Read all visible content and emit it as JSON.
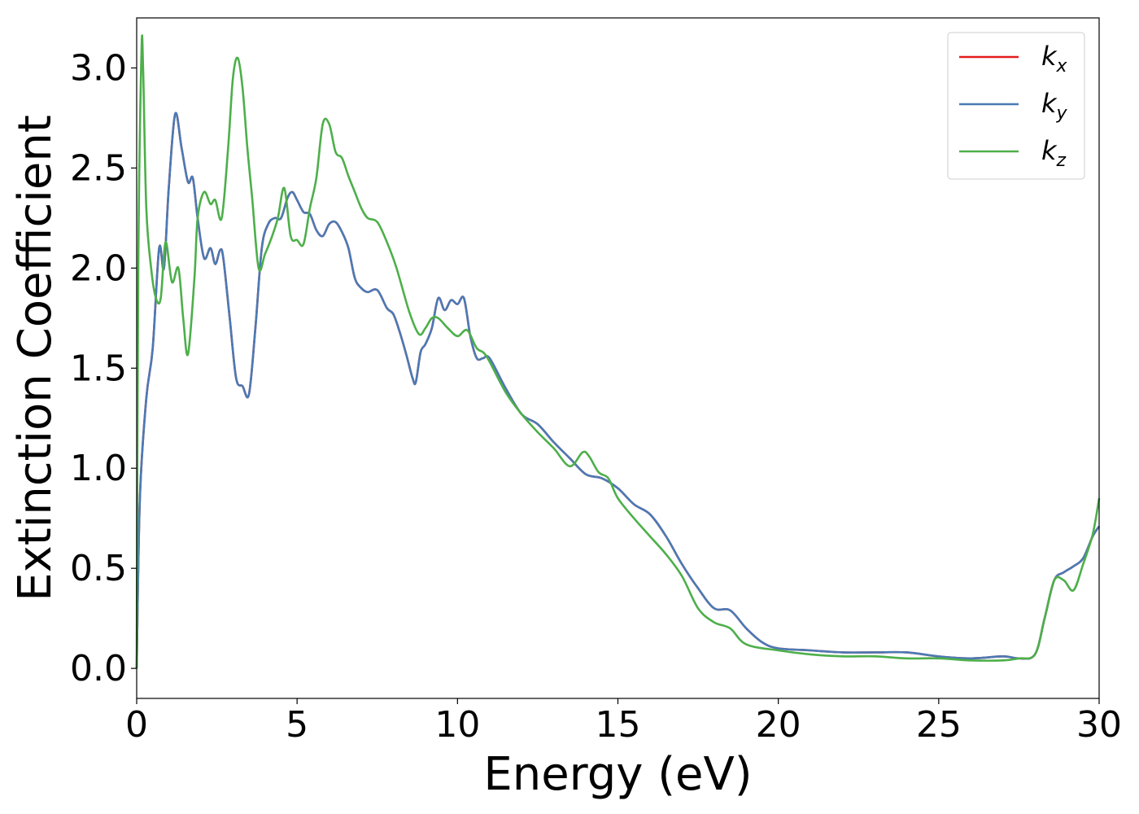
{
  "chart_data": {
    "type": "line",
    "title": "",
    "xlabel": "Energy (eV)",
    "ylabel": "Extinction Coefficient",
    "xlim": [
      0,
      30
    ],
    "ylim": [
      -0.15,
      3.25
    ],
    "xticks": [
      0,
      5,
      10,
      15,
      20,
      25,
      30
    ],
    "xtick_labels": [
      "0",
      "5",
      "10",
      "15",
      "20",
      "25",
      "30"
    ],
    "yticks": [
      0.0,
      0.5,
      1.0,
      1.5,
      2.0,
      2.5,
      3.0
    ],
    "ytick_labels": [
      "0.0",
      "0.5",
      "1.0",
      "1.5",
      "2.0",
      "2.5",
      "3.0"
    ],
    "grid": false,
    "legend_position": "top-right",
    "series": [
      {
        "name": "k_x",
        "label_main": "k",
        "label_sub": "x",
        "color": "#e41a1c",
        "x": [
          0,
          0.1,
          0.3,
          0.5,
          0.7,
          0.85,
          1.0,
          1.2,
          1.4,
          1.6,
          1.75,
          1.9,
          2.1,
          2.3,
          2.45,
          2.6,
          2.7,
          2.9,
          3.1,
          3.3,
          3.5,
          3.7,
          3.9,
          4.1,
          4.3,
          4.5,
          4.7,
          4.85,
          5.0,
          5.2,
          5.4,
          5.6,
          5.8,
          6.0,
          6.2,
          6.4,
          6.6,
          6.8,
          7.0,
          7.2,
          7.5,
          7.8,
          8.0,
          8.2,
          8.4,
          8.6,
          8.7,
          8.85,
          9.0,
          9.2,
          9.4,
          9.6,
          9.8,
          10.0,
          10.2,
          10.4,
          10.6,
          10.8,
          11.0,
          11.5,
          12.0,
          12.5,
          13.0,
          13.5,
          14.0,
          14.5,
          15.0,
          15.5,
          16.0,
          16.5,
          17.0,
          17.5,
          18.0,
          18.5,
          19.0,
          19.5,
          20.0,
          21.0,
          22.0,
          23.0,
          24.0,
          25.0,
          26.0,
          27.0,
          27.5,
          28.0,
          28.3,
          28.6,
          28.9,
          29.2,
          29.5,
          29.8,
          30.0
        ],
        "y": [
          0,
          0.85,
          1.35,
          1.6,
          2.1,
          2.0,
          2.4,
          2.77,
          2.6,
          2.43,
          2.45,
          2.25,
          2.05,
          2.1,
          2.02,
          2.09,
          2.05,
          1.75,
          1.45,
          1.41,
          1.37,
          1.7,
          2.1,
          2.22,
          2.25,
          2.25,
          2.35,
          2.38,
          2.34,
          2.28,
          2.27,
          2.19,
          2.16,
          2.22,
          2.23,
          2.18,
          2.1,
          1.95,
          1.9,
          1.88,
          1.89,
          1.8,
          1.77,
          1.68,
          1.57,
          1.45,
          1.43,
          1.58,
          1.62,
          1.7,
          1.85,
          1.79,
          1.84,
          1.82,
          1.85,
          1.66,
          1.55,
          1.55,
          1.55,
          1.4,
          1.27,
          1.22,
          1.13,
          1.05,
          0.97,
          0.95,
          0.9,
          0.82,
          0.77,
          0.66,
          0.52,
          0.4,
          0.3,
          0.29,
          0.2,
          0.13,
          0.1,
          0.09,
          0.08,
          0.08,
          0.08,
          0.06,
          0.05,
          0.06,
          0.05,
          0.07,
          0.25,
          0.44,
          0.48,
          0.51,
          0.55,
          0.66,
          0.71
        ]
      },
      {
        "name": "k_y",
        "label_main": "k",
        "label_sub": "y",
        "color": "#4a7ab5",
        "x": [
          0,
          0.1,
          0.3,
          0.5,
          0.7,
          0.85,
          1.0,
          1.2,
          1.4,
          1.6,
          1.75,
          1.9,
          2.1,
          2.3,
          2.45,
          2.6,
          2.7,
          2.9,
          3.1,
          3.3,
          3.5,
          3.7,
          3.9,
          4.1,
          4.3,
          4.5,
          4.7,
          4.85,
          5.0,
          5.2,
          5.4,
          5.6,
          5.8,
          6.0,
          6.2,
          6.4,
          6.6,
          6.8,
          7.0,
          7.2,
          7.5,
          7.8,
          8.0,
          8.2,
          8.4,
          8.6,
          8.7,
          8.85,
          9.0,
          9.2,
          9.4,
          9.6,
          9.8,
          10.0,
          10.2,
          10.4,
          10.6,
          10.8,
          11.0,
          11.5,
          12.0,
          12.5,
          13.0,
          13.5,
          14.0,
          14.5,
          15.0,
          15.5,
          16.0,
          16.5,
          17.0,
          17.5,
          18.0,
          18.5,
          19.0,
          19.5,
          20.0,
          21.0,
          22.0,
          23.0,
          24.0,
          25.0,
          26.0,
          27.0,
          27.5,
          28.0,
          28.3,
          28.6,
          28.9,
          29.2,
          29.5,
          29.8,
          30.0
        ],
        "y": [
          0,
          0.85,
          1.35,
          1.6,
          2.1,
          2.0,
          2.4,
          2.77,
          2.6,
          2.43,
          2.45,
          2.25,
          2.05,
          2.1,
          2.02,
          2.09,
          2.05,
          1.75,
          1.45,
          1.41,
          1.37,
          1.7,
          2.1,
          2.22,
          2.25,
          2.25,
          2.35,
          2.38,
          2.34,
          2.28,
          2.27,
          2.19,
          2.16,
          2.22,
          2.23,
          2.18,
          2.1,
          1.95,
          1.9,
          1.88,
          1.89,
          1.8,
          1.77,
          1.68,
          1.57,
          1.45,
          1.43,
          1.58,
          1.62,
          1.7,
          1.85,
          1.79,
          1.84,
          1.82,
          1.85,
          1.66,
          1.55,
          1.55,
          1.55,
          1.4,
          1.27,
          1.22,
          1.13,
          1.05,
          0.97,
          0.95,
          0.9,
          0.82,
          0.77,
          0.66,
          0.52,
          0.4,
          0.3,
          0.29,
          0.2,
          0.13,
          0.1,
          0.09,
          0.08,
          0.08,
          0.08,
          0.06,
          0.05,
          0.06,
          0.05,
          0.07,
          0.25,
          0.44,
          0.48,
          0.51,
          0.55,
          0.66,
          0.71
        ]
      },
      {
        "name": "k_z",
        "label_main": "k",
        "label_sub": "z",
        "color": "#4daf4a",
        "x": [
          0,
          0.05,
          0.15,
          0.2,
          0.3,
          0.45,
          0.6,
          0.75,
          0.9,
          1.1,
          1.3,
          1.45,
          1.6,
          1.8,
          1.9,
          2.1,
          2.3,
          2.45,
          2.65,
          2.85,
          3.0,
          3.15,
          3.3,
          3.45,
          3.6,
          3.8,
          4.0,
          4.2,
          4.4,
          4.6,
          4.8,
          5.0,
          5.2,
          5.4,
          5.6,
          5.8,
          6.0,
          6.2,
          6.4,
          6.6,
          6.8,
          7.0,
          7.2,
          7.5,
          7.8,
          8.1,
          8.5,
          8.8,
          9.0,
          9.2,
          9.4,
          9.7,
          10.0,
          10.3,
          10.6,
          10.9,
          11.5,
          12.0,
          12.5,
          13.0,
          13.5,
          13.9,
          14.1,
          14.4,
          14.7,
          15.0,
          15.5,
          16.0,
          16.5,
          17.0,
          17.5,
          18.0,
          18.5,
          19.0,
          20.0,
          21.0,
          22.0,
          23.0,
          24.0,
          25.0,
          26.0,
          27.0,
          27.5,
          28.0,
          28.3,
          28.6,
          28.9,
          29.2,
          29.5,
          29.8,
          30.0
        ],
        "y": [
          0,
          2.0,
          3.08,
          3.0,
          2.3,
          2.0,
          1.85,
          1.85,
          2.13,
          1.93,
          2.0,
          1.75,
          1.57,
          1.95,
          2.25,
          2.38,
          2.32,
          2.34,
          2.25,
          2.6,
          2.95,
          3.05,
          2.9,
          2.6,
          2.35,
          2.0,
          2.07,
          2.15,
          2.25,
          2.4,
          2.16,
          2.14,
          2.12,
          2.3,
          2.45,
          2.72,
          2.72,
          2.58,
          2.55,
          2.46,
          2.38,
          2.3,
          2.25,
          2.23,
          2.13,
          2.0,
          1.78,
          1.67,
          1.7,
          1.75,
          1.75,
          1.7,
          1.66,
          1.69,
          1.6,
          1.56,
          1.38,
          1.27,
          1.18,
          1.1,
          1.01,
          1.08,
          1.06,
          0.98,
          0.95,
          0.85,
          0.75,
          0.66,
          0.57,
          0.46,
          0.3,
          0.23,
          0.2,
          0.12,
          0.09,
          0.07,
          0.06,
          0.06,
          0.05,
          0.05,
          0.04,
          0.04,
          0.05,
          0.07,
          0.25,
          0.44,
          0.44,
          0.39,
          0.52,
          0.67,
          0.85
        ]
      }
    ]
  }
}
